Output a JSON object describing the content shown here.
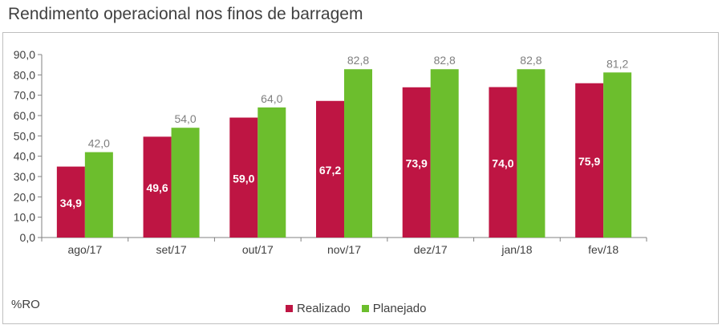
{
  "colors": {
    "realizado": "#BE1543",
    "planejado": "#6CBE2D",
    "axis": "#808080",
    "text": "#404040"
  },
  "chart_data": {
    "type": "bar",
    "title": "Rendimento operacional nos finos de barragem",
    "unit_label": "%RO",
    "categories": [
      "ago/17",
      "set/17",
      "out/17",
      "nov/17",
      "dez/17",
      "jan/18",
      "fev/18"
    ],
    "series": [
      {
        "name": "Realizado",
        "values": [
          34.9,
          49.6,
          59.0,
          67.2,
          73.9,
          74.0,
          75.9
        ],
        "labels": [
          "34,9",
          "49,6",
          "59,0",
          "67,2",
          "73,9",
          "74,0",
          "75,9"
        ]
      },
      {
        "name": "Planejado",
        "values": [
          42.0,
          54.0,
          64.0,
          82.8,
          82.8,
          82.8,
          81.2
        ],
        "labels": [
          "42,0",
          "54,0",
          "64,0",
          "82,8",
          "82,8",
          "82,8",
          "81,2"
        ]
      }
    ],
    "ylim": [
      0,
      90
    ],
    "yticks": [
      0,
      10,
      20,
      30,
      40,
      50,
      60,
      70,
      80,
      90
    ],
    "ytick_labels": [
      "0,0",
      "10,0",
      "20,0",
      "30,0",
      "40,0",
      "50,0",
      "60,0",
      "70,0",
      "80,0",
      "90,0"
    ],
    "legend": "bottom",
    "grid": false
  }
}
